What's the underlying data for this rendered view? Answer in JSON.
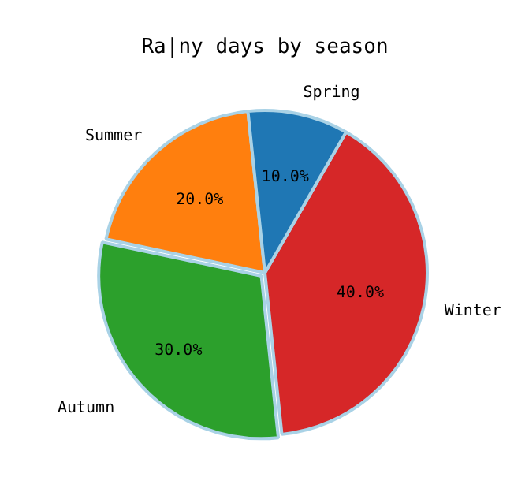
{
  "chart_data": {
    "type": "pie",
    "title": "Ra|ny days by season",
    "categories": [
      "Spring",
      "Summer",
      "Autumn",
      "Winter"
    ],
    "values": [
      10,
      20,
      30,
      40
    ],
    "colors": [
      "#1f77b4",
      "#ff7f0e",
      "#2ca02c",
      "#d62728"
    ],
    "value_labels": [
      "10.0%",
      "20.0%",
      "30.0%",
      "40.0%"
    ],
    "legend": false
  }
}
